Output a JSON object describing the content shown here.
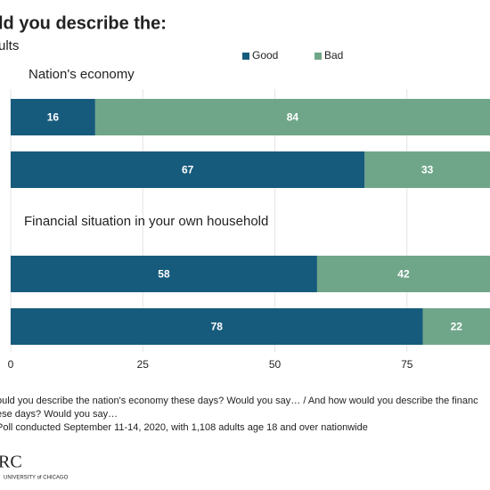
{
  "header": {
    "title": "ld you describe the:",
    "subtitle": "ults"
  },
  "chart_data": [
    {
      "type": "bar",
      "stacked": true,
      "orientation": "horizontal",
      "title": "Nation's economy",
      "categories": [
        null,
        null
      ],
      "series": [
        {
          "name": "Good",
          "color": "#175b7c",
          "values": [
            16,
            67
          ]
        },
        {
          "name": "Bad",
          "color": "#6fa689",
          "values": [
            84,
            33
          ]
        }
      ],
      "xlim": [
        0,
        100
      ],
      "grid": true
    },
    {
      "type": "bar",
      "stacked": true,
      "orientation": "horizontal",
      "title": "Financial situation in your own household",
      "categories": [
        null,
        null
      ],
      "series": [
        {
          "name": "Good",
          "color": "#175b7c",
          "values": [
            58,
            78
          ]
        },
        {
          "name": "Bad",
          "color": "#6fa689",
          "values": [
            42,
            22
          ]
        }
      ],
      "xlim": [
        0,
        100
      ],
      "xticks": [
        0,
        25,
        50,
        75
      ],
      "grid": true
    }
  ],
  "notes": [
    "ould you describe the nation's economy these days? Would you say… / And how would you describe the financ",
    "ese days? Would you say…",
    "Poll conducted September 11-14, 2020, with 1,108 adults age 18 and over nationwide"
  ],
  "logo": {
    "name": "RC",
    "university": "UNIVERSITY of CHICAGO"
  }
}
